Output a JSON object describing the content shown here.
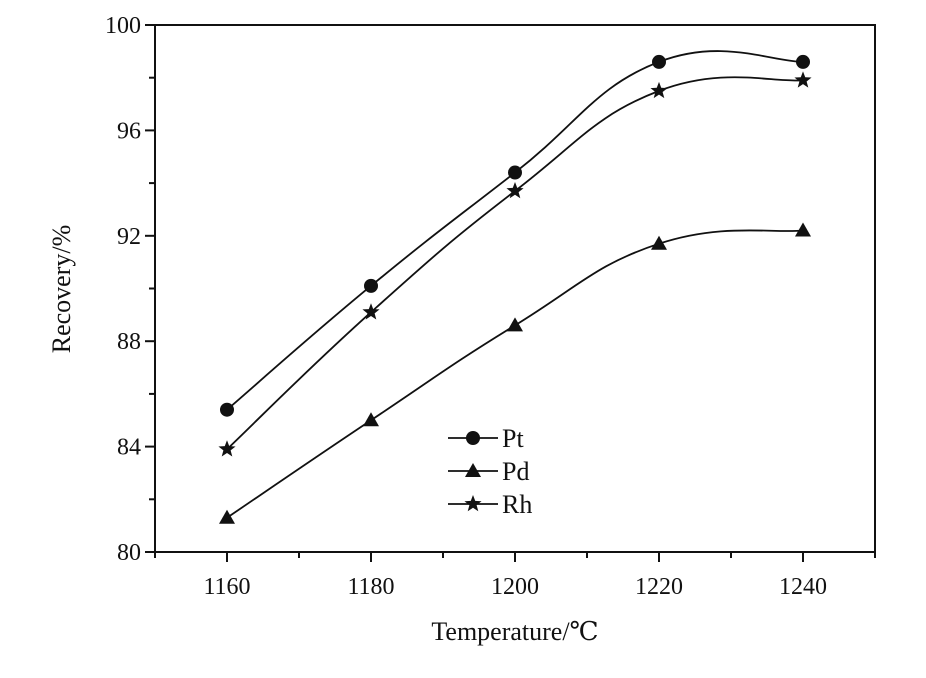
{
  "chart_data": {
    "type": "line",
    "title": "",
    "xlabel": "Temperature/℃",
    "ylabel": "Recovery/%",
    "x": [
      1160,
      1180,
      1200,
      1220,
      1240
    ],
    "xlim": [
      1150,
      1250
    ],
    "ylim": [
      80,
      100
    ],
    "x_ticks": [
      1160,
      1180,
      1200,
      1220,
      1240
    ],
    "x_tick_labels": [
      "1160",
      "1180",
      "1200",
      "1220",
      "1240"
    ],
    "y_ticks": [
      80,
      84,
      88,
      92,
      96,
      100
    ],
    "y_tick_labels": [
      "80",
      "84",
      "88",
      "92",
      "96",
      "100"
    ],
    "grid": false,
    "legend_position": "lower-center",
    "series": [
      {
        "name": "Pt",
        "marker": "circle",
        "values": [
          85.4,
          90.1,
          94.4,
          98.6,
          98.6
        ]
      },
      {
        "name": "Pd",
        "marker": "triangle",
        "values": [
          81.3,
          85.0,
          88.6,
          91.7,
          92.2
        ]
      },
      {
        "name": "Rh",
        "marker": "star",
        "values": [
          83.9,
          89.1,
          93.7,
          97.5,
          97.9
        ]
      }
    ],
    "colors": {
      "line": "#111111",
      "marker": "#111111",
      "axis": "#111111"
    }
  }
}
